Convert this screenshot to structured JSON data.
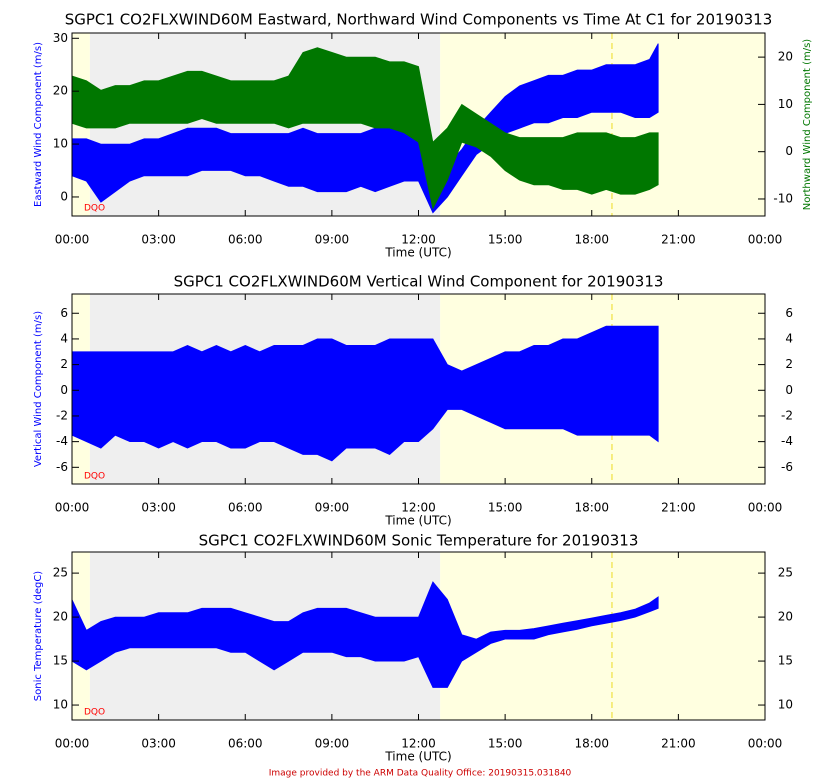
{
  "footer": "Image provided by the ARM Data Quality Office: 20190315.031840",
  "chart_data": [
    {
      "type": "area",
      "title": "SGPC1 CO2FLXWIND60M Eastward, Northward Wind Components vs Time At C1 for 20190313",
      "xlabel": "Time (UTC)",
      "ylabel": "Eastward Wind Component (m/s)",
      "y2label": "Northward Wind Component (m/s)",
      "annotation": "DQO",
      "annotation_color": "#ff0000",
      "xlim": [
        0,
        24
      ],
      "xticks": [
        {
          "value": 0,
          "label": "00:00"
        },
        {
          "value": 3,
          "label": "03:00"
        },
        {
          "value": 6,
          "label": "06:00"
        },
        {
          "value": 9,
          "label": "09:00"
        },
        {
          "value": 12,
          "label": "12:00"
        },
        {
          "value": 15,
          "label": "15:00"
        },
        {
          "value": 18,
          "label": "18:00"
        },
        {
          "value": 21,
          "label": "21:00"
        },
        {
          "value": 24,
          "label": "00:00"
        }
      ],
      "ylim": [
        -3.6,
        31
      ],
      "yticks": [
        0,
        10,
        20,
        30
      ],
      "y2lim": [
        -13.6,
        25.1
      ],
      "y2ticks": [
        -10,
        0,
        10,
        20
      ],
      "shading": [
        {
          "from": 0,
          "to": 0.62,
          "color": "#ffffe0"
        },
        {
          "from": 0.62,
          "to": 12.75,
          "color": "#efefef"
        },
        {
          "from": 12.75,
          "to": 24,
          "color": "#ffffe0"
        }
      ],
      "marker_line": {
        "x": 18.7,
        "color": "#f0e040"
      },
      "x": [
        0,
        0.5,
        1,
        1.5,
        2,
        2.5,
        3,
        3.5,
        4,
        4.5,
        5,
        5.5,
        6,
        6.5,
        7,
        7.5,
        8,
        8.5,
        9,
        9.5,
        10,
        10.5,
        11,
        11.5,
        12,
        12.5,
        13,
        13.5,
        14,
        14.5,
        15,
        15.5,
        16,
        16.5,
        17,
        17.5,
        18,
        18.5,
        19,
        19.5,
        20,
        20.3
      ],
      "series": [
        {
          "color": "#0000ff",
          "axis": "y",
          "low": [
            4,
            3,
            -1,
            1,
            3,
            4,
            4,
            4,
            4,
            5,
            5,
            5,
            4,
            4,
            3,
            2,
            2,
            1,
            1,
            1,
            2,
            1,
            2,
            3,
            3,
            -3,
            0,
            4,
            8,
            10,
            12,
            13,
            14,
            14,
            15,
            15,
            16,
            16,
            16,
            15,
            15,
            16
          ],
          "high": [
            11,
            11,
            10,
            10,
            10,
            11,
            11,
            12,
            13,
            13,
            13,
            12,
            12,
            12,
            12,
            12,
            13,
            12,
            12,
            12,
            12,
            13,
            13,
            13,
            14,
            8,
            6,
            9,
            13,
            16,
            19,
            21,
            22,
            23,
            23,
            24,
            24,
            25,
            25,
            25,
            26,
            29
          ]
        },
        {
          "color": "#007700",
          "axis": "y2",
          "low": [
            6,
            5,
            5,
            5,
            6,
            6,
            6,
            6,
            6,
            7,
            6,
            6,
            6,
            6,
            6,
            5,
            6,
            6,
            6,
            6,
            6,
            5,
            5,
            4,
            2,
            -12,
            -6,
            2,
            1,
            -1,
            -4,
            -6,
            -7,
            -7,
            -8,
            -8,
            -9,
            -8,
            -9,
            -9,
            -8,
            -7
          ],
          "high": [
            16,
            15,
            13,
            14,
            14,
            15,
            15,
            16,
            17,
            17,
            16,
            15,
            15,
            15,
            15,
            16,
            21,
            22,
            21,
            20,
            20,
            20,
            19,
            19,
            18,
            2,
            5,
            10,
            8,
            6,
            4,
            3,
            3,
            3,
            3,
            4,
            4,
            4,
            3,
            3,
            4,
            4
          ]
        }
      ]
    },
    {
      "type": "area",
      "title": "SGPC1 CO2FLXWIND60M Vertical Wind Component for 20190313",
      "xlabel": "Time (UTC)",
      "ylabel": "Vertical Wind Component (m/s)",
      "annotation": "DQO",
      "annotation_color": "#ff0000",
      "xlim": [
        0,
        24
      ],
      "xticks": [
        {
          "value": 0,
          "label": "00:00"
        },
        {
          "value": 3,
          "label": "03:00"
        },
        {
          "value": 6,
          "label": "06:00"
        },
        {
          "value": 9,
          "label": "09:00"
        },
        {
          "value": 12,
          "label": "12:00"
        },
        {
          "value": 15,
          "label": "15:00"
        },
        {
          "value": 18,
          "label": "18:00"
        },
        {
          "value": 21,
          "label": "21:00"
        },
        {
          "value": 24,
          "label": "00:00"
        }
      ],
      "ylim": [
        -7.3,
        7.5
      ],
      "yticks": [
        -6,
        -4,
        -2,
        0,
        2,
        4,
        6
      ],
      "y2lim": [
        -7.3,
        7.5
      ],
      "y2ticks": [
        -6,
        -4,
        -2,
        0,
        2,
        4,
        6
      ],
      "shading": [
        {
          "from": 0,
          "to": 0.62,
          "color": "#ffffe0"
        },
        {
          "from": 0.62,
          "to": 12.75,
          "color": "#efefef"
        },
        {
          "from": 12.75,
          "to": 24,
          "color": "#ffffe0"
        }
      ],
      "marker_line": {
        "x": 18.7,
        "color": "#f0e040"
      },
      "x": [
        0,
        0.5,
        1,
        1.5,
        2,
        2.5,
        3,
        3.5,
        4,
        4.5,
        5,
        5.5,
        6,
        6.5,
        7,
        7.5,
        8,
        8.5,
        9,
        9.5,
        10,
        10.5,
        11,
        11.5,
        12,
        12.5,
        13,
        13.5,
        14,
        14.5,
        15,
        15.5,
        16,
        16.5,
        17,
        17.5,
        18,
        18.5,
        19,
        19.5,
        20,
        20.3
      ],
      "series": [
        {
          "color": "#0000ff",
          "axis": "y",
          "low": [
            -3.5,
            -4,
            -4.5,
            -3.5,
            -4,
            -4,
            -4.5,
            -4,
            -4.5,
            -4,
            -4,
            -4.5,
            -4.5,
            -4,
            -4,
            -4.5,
            -5,
            -5,
            -5.5,
            -4.5,
            -4.5,
            -4.5,
            -5,
            -4,
            -4,
            -3,
            -1.5,
            -1.5,
            -2,
            -2.5,
            -3,
            -3,
            -3,
            -3,
            -3,
            -3.5,
            -3.5,
            -3.5,
            -3.5,
            -3.5,
            -3.5,
            -4
          ],
          "high": [
            3,
            3,
            3,
            3,
            3,
            3,
            3,
            3,
            3.5,
            3,
            3.5,
            3,
            3.5,
            3,
            3.5,
            3.5,
            3.5,
            4,
            4,
            3.5,
            3.5,
            3.5,
            4,
            4,
            4,
            4,
            2,
            1.5,
            2,
            2.5,
            3,
            3,
            3.5,
            3.5,
            4,
            4,
            4.5,
            5,
            5,
            5,
            5,
            5
          ]
        }
      ]
    },
    {
      "type": "area",
      "title": "SGPC1 CO2FLXWIND60M Sonic Temperature for 20190313",
      "xlabel": "Time (UTC)",
      "ylabel": "Sonic Temperature (degC)",
      "annotation": "DQO",
      "annotation_color": "#ff0000",
      "xlim": [
        0,
        24
      ],
      "xticks": [
        {
          "value": 0,
          "label": "00:00"
        },
        {
          "value": 3,
          "label": "03:00"
        },
        {
          "value": 6,
          "label": "06:00"
        },
        {
          "value": 9,
          "label": "09:00"
        },
        {
          "value": 12,
          "label": "12:00"
        },
        {
          "value": 15,
          "label": "15:00"
        },
        {
          "value": 18,
          "label": "18:00"
        },
        {
          "value": 21,
          "label": "21:00"
        },
        {
          "value": 24,
          "label": "00:00"
        }
      ],
      "ylim": [
        8.3,
        27.4
      ],
      "yticks": [
        10,
        15,
        20,
        25
      ],
      "y2lim": [
        8.3,
        27.4
      ],
      "y2ticks": [
        10,
        15,
        20,
        25
      ],
      "shading": [
        {
          "from": 0,
          "to": 0.62,
          "color": "#ffffe0"
        },
        {
          "from": 0.62,
          "to": 12.75,
          "color": "#efefef"
        },
        {
          "from": 12.75,
          "to": 24,
          "color": "#ffffe0"
        }
      ],
      "marker_line": {
        "x": 18.7,
        "color": "#f0e040"
      },
      "x": [
        0,
        0.5,
        1,
        1.5,
        2,
        2.5,
        3,
        3.5,
        4,
        4.5,
        5,
        5.5,
        6,
        6.5,
        7,
        7.5,
        8,
        8.5,
        9,
        9.5,
        10,
        10.5,
        11,
        11.5,
        12,
        12.5,
        13,
        13.5,
        14,
        14.5,
        15,
        15.5,
        16,
        16.5,
        17,
        17.5,
        18,
        18.5,
        19,
        19.5,
        20,
        20.3
      ],
      "series": [
        {
          "color": "#0000ff",
          "axis": "y",
          "low": [
            15,
            14,
            15,
            16,
            16.5,
            16.5,
            16.5,
            16.5,
            16.5,
            16.5,
            16.5,
            16,
            16,
            15,
            14,
            15,
            16,
            16,
            16,
            15.5,
            15.5,
            15,
            15,
            15,
            15.5,
            12,
            12,
            15,
            16,
            17,
            17.5,
            17.5,
            17.5,
            18,
            18.3,
            18.6,
            19,
            19.3,
            19.6,
            20,
            20.6,
            21
          ],
          "high": [
            22,
            18.5,
            19.5,
            20,
            20,
            20,
            20.5,
            20.5,
            20.5,
            21,
            21,
            21,
            20.5,
            20,
            19.5,
            19.5,
            20.5,
            21,
            21,
            21,
            20.5,
            20,
            20,
            20,
            20,
            24,
            22,
            18,
            17.5,
            18.3,
            18.5,
            18.5,
            18.7,
            19,
            19.3,
            19.6,
            19.9,
            20.2,
            20.5,
            20.9,
            21.6,
            22.3
          ]
        }
      ]
    }
  ]
}
